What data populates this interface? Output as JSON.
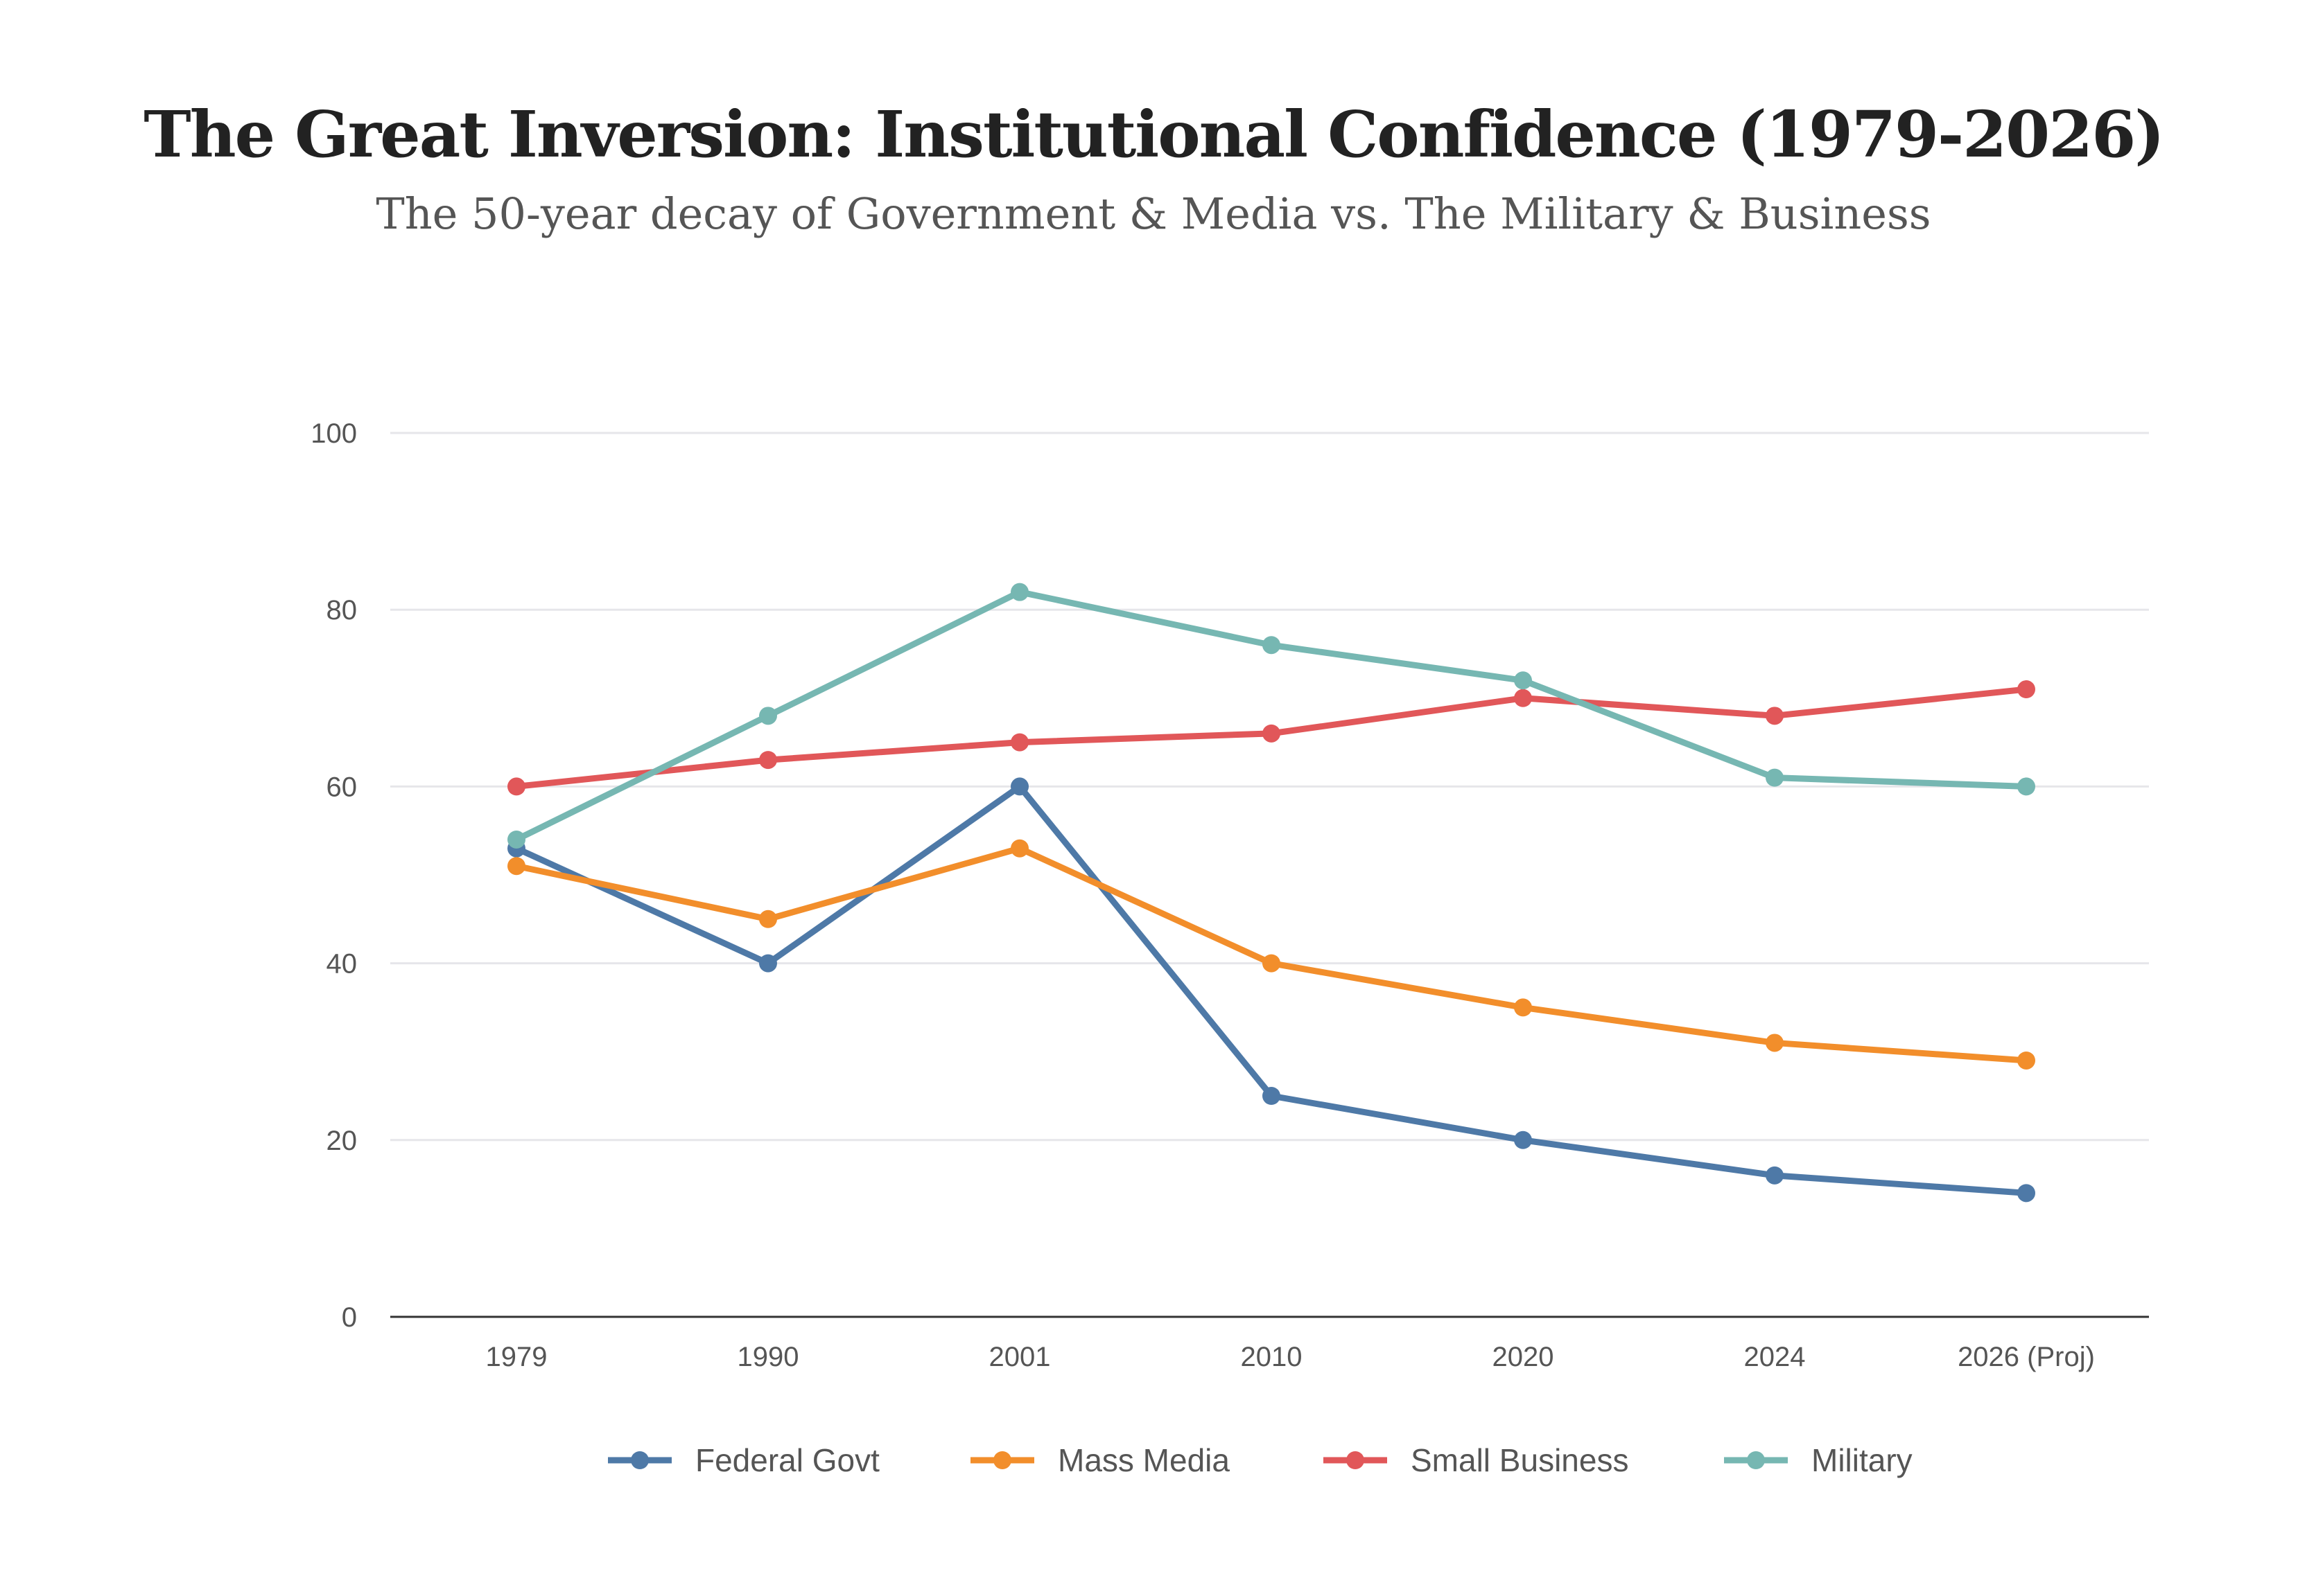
{
  "chart_data": {
    "type": "line",
    "title": "The Great Inversion: Institutional Confidence (1979-2026)",
    "subtitle": "The 50-year decay of Government & Media vs. The Military & Business",
    "xlabel": "",
    "ylabel": "",
    "categories": [
      "1979",
      "1990",
      "2001",
      "2010",
      "2020",
      "2024",
      "2026 (Proj)"
    ],
    "ylim": [
      0,
      100
    ],
    "yticks": [
      0,
      20,
      40,
      60,
      80,
      100
    ],
    "grid": true,
    "legend_position": "bottom",
    "series": [
      {
        "name": "Federal Govt",
        "color": "#4e79a7",
        "values": [
          53,
          40,
          60,
          25,
          20,
          16,
          14
        ]
      },
      {
        "name": "Mass Media",
        "color": "#f28e2b",
        "values": [
          51,
          45,
          53,
          40,
          35,
          31,
          29
        ]
      },
      {
        "name": "Small Business",
        "color": "#e15759",
        "values": [
          60,
          63,
          65,
          66,
          70,
          68,
          71
        ]
      },
      {
        "name": "Military",
        "color": "#76b7b2",
        "values": [
          54,
          68,
          82,
          76,
          72,
          61,
          60
        ]
      }
    ]
  }
}
